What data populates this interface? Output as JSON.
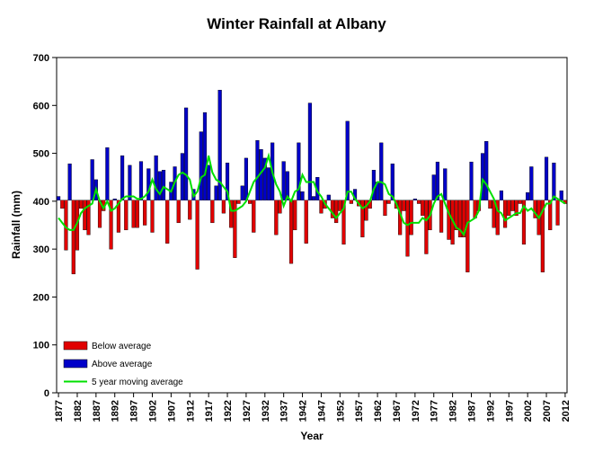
{
  "chart_data": {
    "type": "bar",
    "title": "Winter Rainfall at Albany",
    "x_label": "Year",
    "y_label": "Rainfall (mm)",
    "average": 402,
    "x": [
      1877,
      1878,
      1879,
      1880,
      1881,
      1882,
      1883,
      1884,
      1885,
      1886,
      1887,
      1888,
      1889,
      1890,
      1891,
      1892,
      1893,
      1894,
      1895,
      1896,
      1897,
      1898,
      1899,
      1900,
      1901,
      1902,
      1903,
      1904,
      1905,
      1906,
      1907,
      1908,
      1909,
      1910,
      1911,
      1912,
      1913,
      1914,
      1915,
      1916,
      1917,
      1918,
      1919,
      1920,
      1921,
      1922,
      1923,
      1924,
      1925,
      1926,
      1927,
      1928,
      1929,
      1930,
      1931,
      1932,
      1933,
      1934,
      1935,
      1936,
      1937,
      1938,
      1939,
      1940,
      1941,
      1942,
      1943,
      1944,
      1945,
      1946,
      1947,
      1948,
      1949,
      1950,
      1951,
      1952,
      1953,
      1954,
      1955,
      1956,
      1957,
      1958,
      1959,
      1960,
      1961,
      1962,
      1963,
      1964,
      1965,
      1966,
      1967,
      1968,
      1969,
      1970,
      1971,
      1972,
      1973,
      1974,
      1975,
      1976,
      1977,
      1978,
      1979,
      1980,
      1981,
      1982,
      1983,
      1984,
      1985,
      1986,
      1987,
      1988,
      1989,
      1990,
      1991,
      1992,
      1993,
      1994,
      1995,
      1996,
      1997,
      1998,
      1999,
      2000,
      2001,
      2002,
      2003,
      2004,
      2005,
      2006,
      2007,
      2008,
      2009,
      2010,
      2011,
      2012
    ],
    "values": [
      410,
      385,
      298,
      478,
      248,
      298,
      385,
      340,
      330,
      487,
      445,
      345,
      380,
      512,
      300,
      405,
      335,
      495,
      340,
      475,
      345,
      345,
      483,
      350,
      468,
      335,
      495,
      462,
      465,
      312,
      440,
      472,
      355,
      500,
      595,
      362,
      425,
      258,
      545,
      585,
      475,
      355,
      432,
      632,
      375,
      480,
      345,
      282,
      395,
      432,
      490,
      395,
      335,
      527,
      508,
      490,
      470,
      522,
      330,
      375,
      483,
      462,
      270,
      340,
      522,
      420,
      312,
      605,
      410,
      450,
      375,
      385,
      413,
      365,
      355,
      380,
      310,
      567,
      395,
      425,
      390,
      325,
      360,
      385,
      465,
      440,
      522,
      370,
      395,
      478,
      385,
      330,
      380,
      285,
      330,
      405,
      395,
      370,
      290,
      340,
      455,
      482,
      335,
      468,
      320,
      310,
      340,
      325,
      325,
      252,
      482,
      365,
      380,
      500,
      525,
      385,
      345,
      330,
      422,
      345,
      370,
      380,
      370,
      395,
      310,
      418,
      472,
      365,
      330,
      252,
      492,
      340,
      480,
      350,
      422,
      395
    ],
    "series": [
      {
        "name": "Below average",
        "color": "#e00000"
      },
      {
        "name": "Above average",
        "color": "#0000c8"
      },
      {
        "name": "5 year moving average",
        "color": "#00e000",
        "values": [
          365,
          355,
          345,
          340,
          340,
          355,
          375,
          385,
          390,
          395,
          425,
          400,
          385,
          400,
          380,
          385,
          395,
          405,
          410,
          410,
          410,
          405,
          405,
          410,
          420,
          445,
          425,
          415,
          430,
          425,
          420,
          440,
          455,
          460,
          455,
          445,
          410,
          420,
          450,
          455,
          495,
          460,
          445,
          440,
          430,
          420,
          380,
          380,
          385,
          390,
          400,
          420,
          440,
          450,
          460,
          470,
          495,
          460,
          435,
          420,
          390,
          410,
          400,
          420,
          425,
          455,
          440,
          440,
          440,
          420,
          410,
          395,
          385,
          375,
          365,
          375,
          385,
          420,
          420,
          405,
          395,
          385,
          390,
          400,
          425,
          440,
          440,
          435,
          415,
          410,
          395,
          375,
          355,
          350,
          355,
          355,
          355,
          365,
          360,
          370,
          395,
          410,
          415,
          395,
          375,
          360,
          345,
          340,
          330,
          355,
          360,
          365,
          380,
          445,
          435,
          420,
          405,
          380,
          375,
          360,
          365,
          370,
          375,
          375,
          390,
          380,
          385,
          375,
          365,
          380,
          395,
          395,
          410,
          405,
          400,
          395
        ]
      }
    ],
    "xlim": [
      1876.5,
      2012.5
    ],
    "xticks": [
      1877,
      1882,
      1887,
      1892,
      1897,
      1902,
      1907,
      1912,
      1917,
      1922,
      1927,
      1932,
      1937,
      1942,
      1947,
      1952,
      1957,
      1962,
      1967,
      1972,
      1977,
      1982,
      1987,
      1992,
      1997,
      2002,
      2007,
      2012
    ],
    "ylim": [
      0,
      700
    ],
    "yticks": [
      0,
      100,
      200,
      300,
      400,
      500,
      600,
      700
    ],
    "legend": "lower left"
  }
}
